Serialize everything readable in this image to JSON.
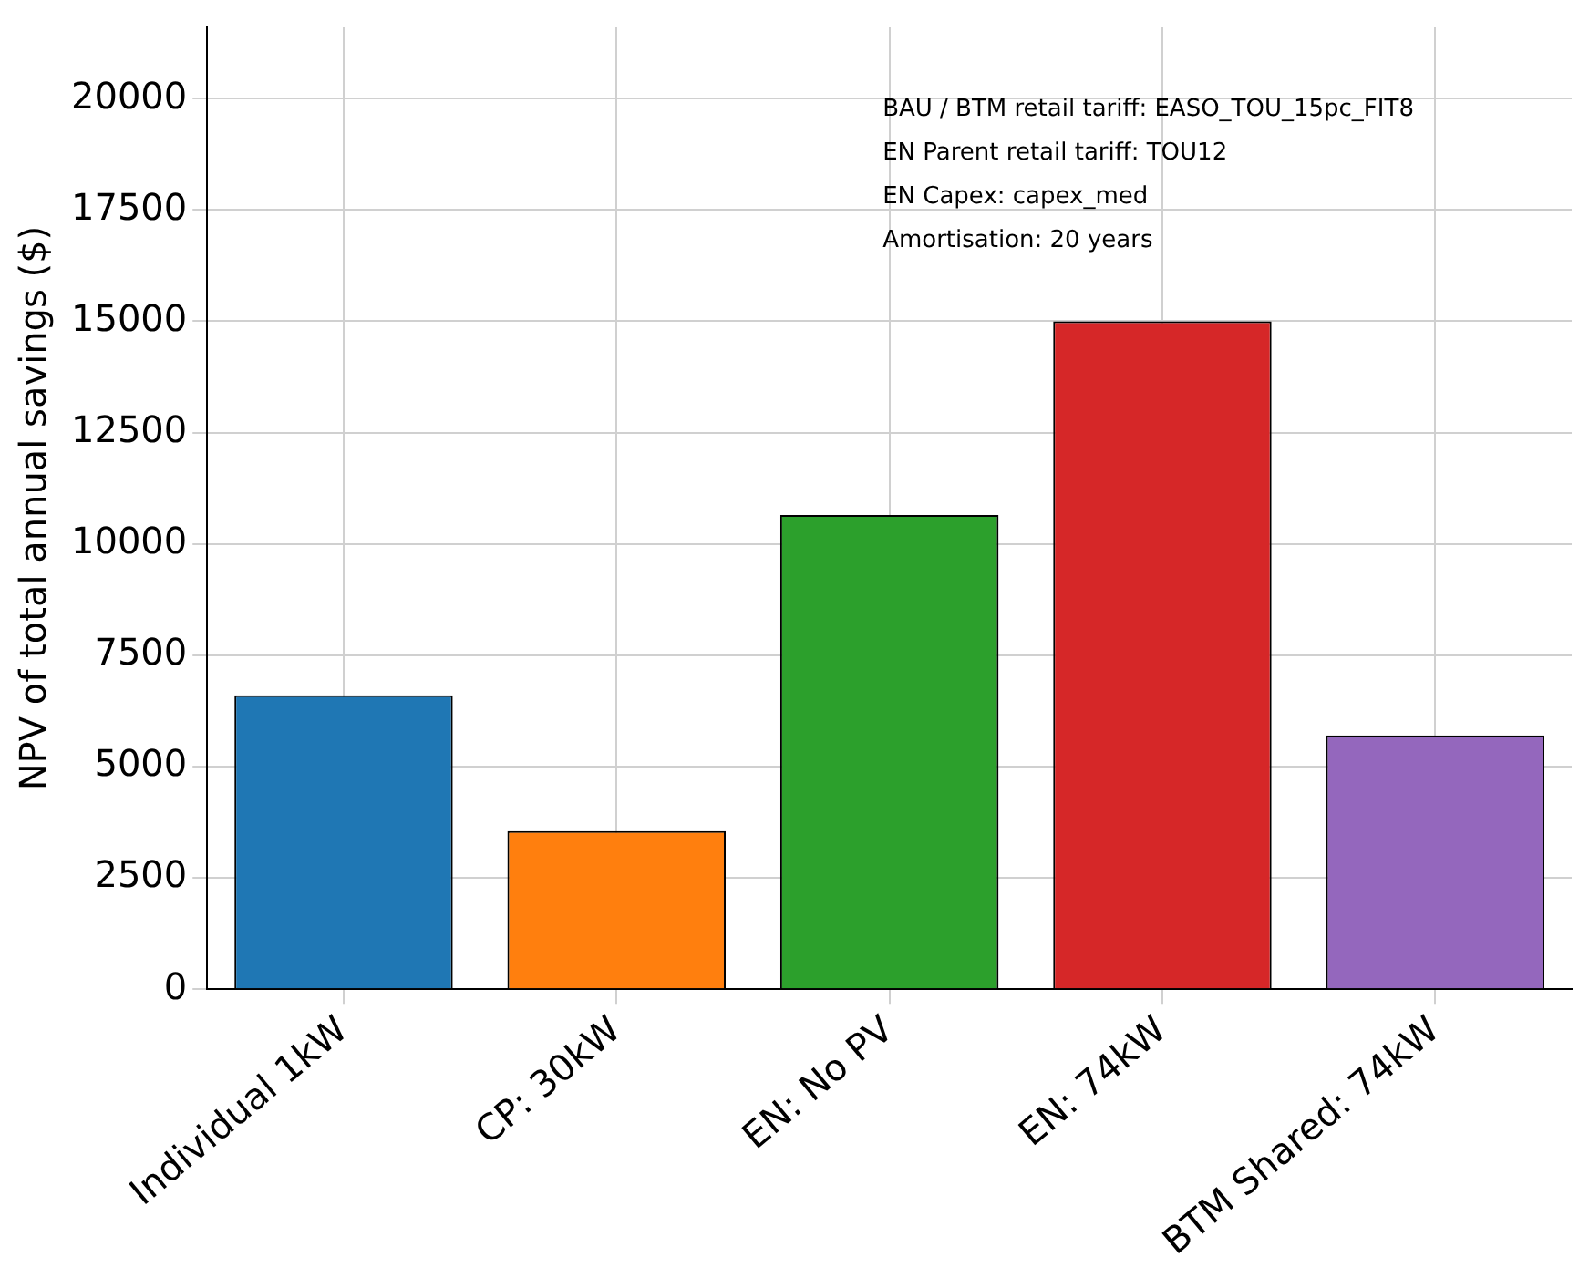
{
  "chart_data": {
    "type": "bar",
    "ylabel": "NPV of total annual savings ($)",
    "categories": [
      "Individual 1kW",
      "CP: 30kW",
      "EN: No PV",
      "EN: 74kW",
      "BTM Shared: 74kW"
    ],
    "values": [
      6600,
      3550,
      10650,
      15000,
      5700
    ],
    "colors": [
      "#1f77b4",
      "#ff7f0e",
      "#2ca02c",
      "#d62728",
      "#9467bd"
    ],
    "ylim": [
      0,
      21600
    ],
    "yticks": [
      0,
      2500,
      5000,
      7500,
      10000,
      12500,
      15000,
      17500,
      20000
    ],
    "grid": true,
    "annotations": [
      "BAU / BTM retail tariff: EASO_TOU_15pc_FIT8",
      "EN Parent retail tariff: TOU12",
      "EN Capex: capex_med",
      "Amortisation: 20 years"
    ]
  }
}
